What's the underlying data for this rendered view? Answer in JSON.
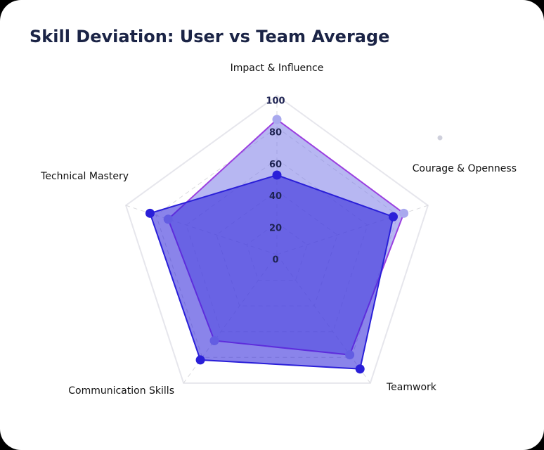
{
  "chart_data": {
    "type": "radar",
    "title": "Skill Deviation: User vs Team Average",
    "categories": [
      "Impact & Influence",
      "Courage & Openness",
      "Teamwork",
      "Communication Skills",
      "Technical Mastery"
    ],
    "series": [
      {
        "color": "#7b7be8",
        "stroke": "#9b3fe0",
        "values": [
          85,
          84,
          78,
          67,
          72
        ]
      },
      {
        "color": "#2a1fd8",
        "stroke": "#2a1fd8",
        "values": [
          50,
          77,
          89,
          82,
          84
        ]
      }
    ],
    "ylim": [
      0,
      100
    ],
    "yticks": [
      0,
      20,
      40,
      60,
      80,
      100
    ],
    "grid": true
  }
}
